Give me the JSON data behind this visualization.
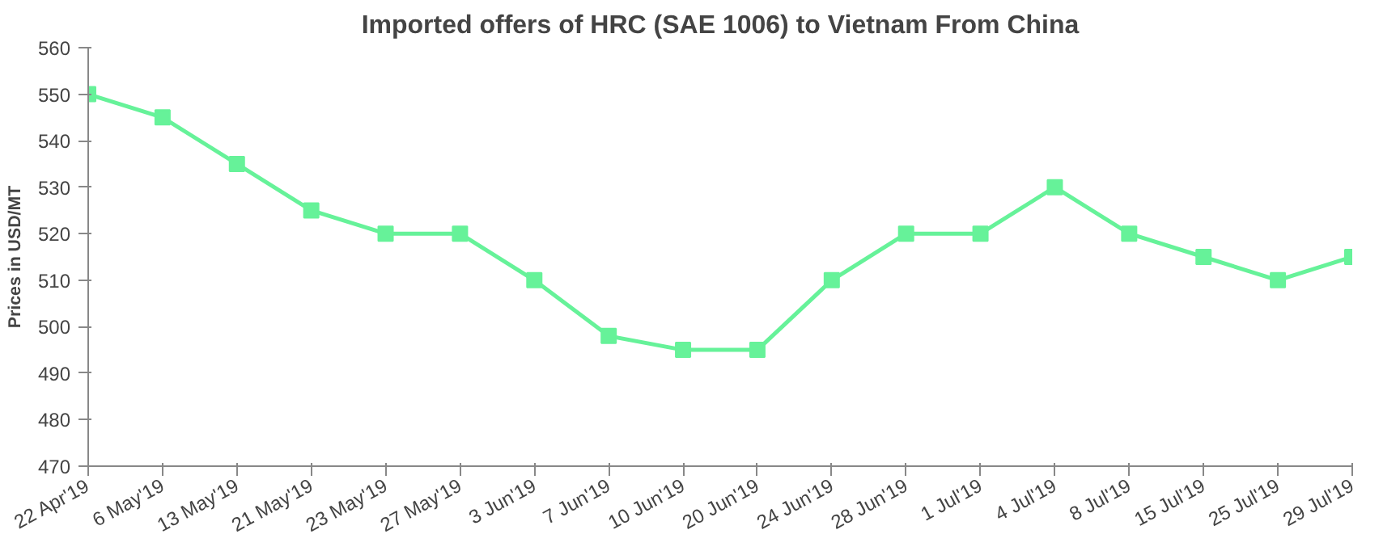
{
  "chart_data": {
    "type": "line",
    "title": "Imported offers of HRC (SAE 1006) to Vietnam From China",
    "ylabel": "Prices in USD/MT",
    "categories": [
      "22 Apr'19",
      "6 May'19",
      "13 May'19",
      "21 May'19",
      "23 May'19",
      "27 May'19",
      "3 Jun'19",
      "7 Jun'19",
      "10 Jun'19",
      "20 Jun'19",
      "24 Jun'19",
      "28 Jun'19",
      "1 Jul'19",
      "4 Jul'19",
      "8 Jul'19",
      "15 Jul'19",
      "25 Jul'19",
      "29 Jul'19"
    ],
    "series": [
      {
        "color": "#66f299",
        "values": [
          550,
          545,
          535,
          525,
          520,
          520,
          510,
          498,
          495,
          495,
          510,
          520,
          520,
          530,
          520,
          515,
          510,
          515
        ]
      }
    ],
    "ylim": [
      470,
      560
    ],
    "yticks": [
      470,
      480,
      490,
      500,
      510,
      520,
      530,
      540,
      550,
      560
    ],
    "grid": false,
    "marker": "square",
    "line_style": "solid"
  }
}
